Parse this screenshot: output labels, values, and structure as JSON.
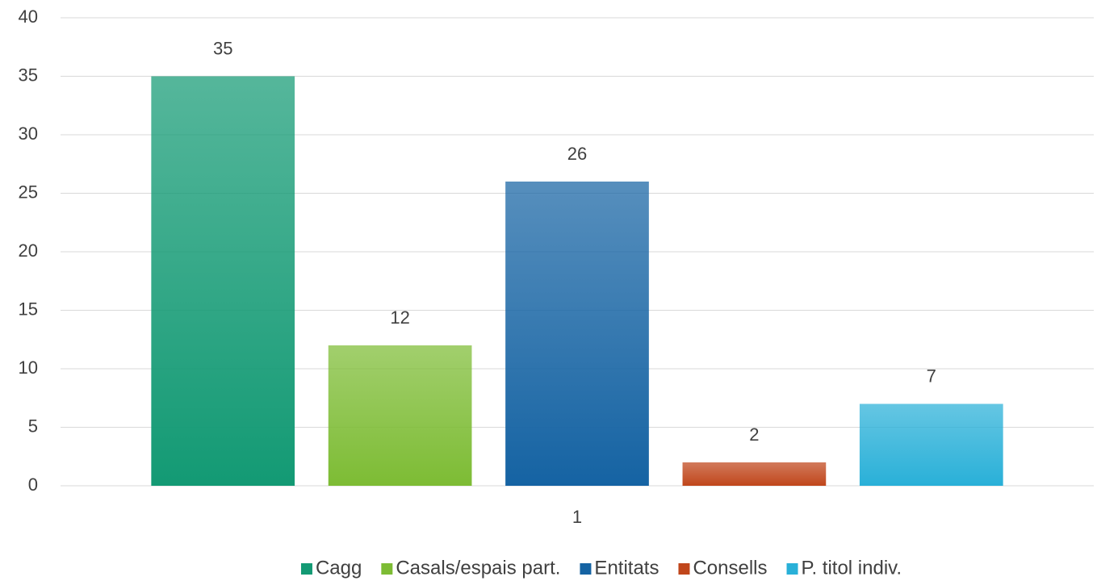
{
  "chart_data": {
    "type": "bar",
    "categories": [
      "1"
    ],
    "series": [
      {
        "name": "Cagg",
        "color": "#139a74",
        "values": [
          35
        ]
      },
      {
        "name": "Casals/espais part.",
        "color": "#7dbc34",
        "values": [
          12
        ]
      },
      {
        "name": "Entitats",
        "color": "#1563a3",
        "values": [
          26
        ]
      },
      {
        "name": "Consells",
        "color": "#c0461b",
        "values": [
          2
        ]
      },
      {
        "name": "P. titol indiv.",
        "color": "#29b0d8",
        "values": [
          7
        ]
      }
    ],
    "ylim": [
      0,
      40
    ],
    "yticks": [
      0,
      5,
      10,
      15,
      20,
      25,
      30,
      35,
      40
    ],
    "grid": true,
    "legend": "bottom"
  }
}
